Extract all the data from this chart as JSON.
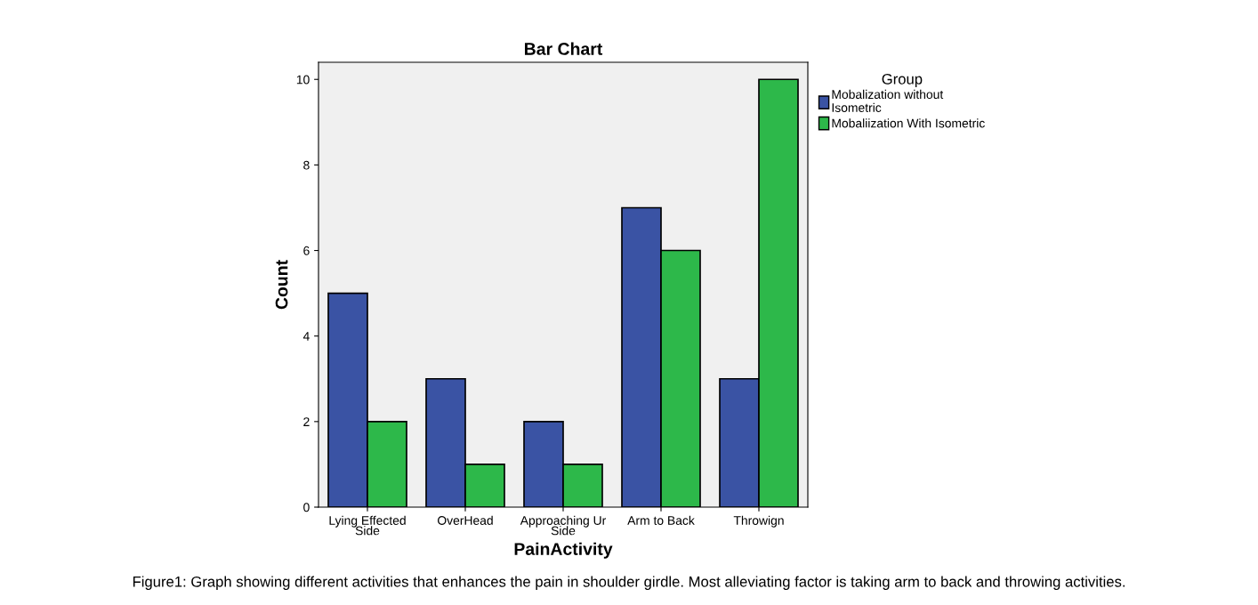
{
  "chart_data": {
    "type": "bar",
    "title": "Bar Chart",
    "xlabel": "PainActivity",
    "ylabel": "Count",
    "legend_title": "Group",
    "categories": [
      "Lying Effected\nSide",
      "OverHead",
      "Approaching Ur\nSide",
      "Arm to Back",
      "Throwign"
    ],
    "series": [
      {
        "name": "Mobalization without\nIsometric",
        "color": "#3a53a4",
        "values": [
          5,
          3,
          2,
          7,
          3
        ]
      },
      {
        "name": "Mobaliization With Isometric",
        "color": "#2db84a",
        "values": [
          2,
          1,
          1,
          6,
          10
        ]
      }
    ],
    "ylim": [
      0,
      10.4
    ],
    "yticks": [
      0,
      2,
      4,
      6,
      8,
      10
    ],
    "grid": false,
    "legend": "top right",
    "annotations": [
      "Figure1: Graph showing different activities that enhances the pain in shoulder girdle. Most alleviating factor is taking arm to back and throwing activities."
    ]
  }
}
